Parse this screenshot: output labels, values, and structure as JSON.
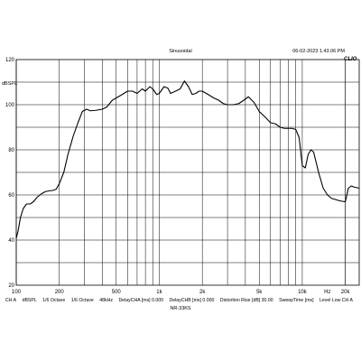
{
  "header": {
    "title": "Sinusoidal",
    "timestamp": "06-02-2023 1.43.06 PM",
    "brand": "CLIO"
  },
  "footer": {
    "items": [
      "CH A",
      "dBSPL",
      "1/6 Octave",
      "1/6 Octave",
      "48kHz",
      "DelayCHA [ms] 0.000",
      "DelayCHB [ms] 0.000",
      "Distortion Rise [dB] 30.00",
      "SweepTime [ms]",
      "Level Low CH A"
    ],
    "filename": "NR-33KS"
  },
  "chart_data": {
    "type": "line",
    "ylabel": "dBSPL",
    "x_scale": "log",
    "xlim": [
      100,
      25000
    ],
    "ylim": [
      20,
      120
    ],
    "x_ticks": [
      {
        "value": 100,
        "label": "100"
      },
      {
        "value": 200,
        "label": "200"
      },
      {
        "value": 500,
        "label": "500"
      },
      {
        "value": 1000,
        "label": "1k"
      },
      {
        "value": 2000,
        "label": "2k"
      },
      {
        "value": 5000,
        "label": "5k"
      },
      {
        "value": 10000,
        "label": "10k"
      },
      {
        "value": 15000,
        "label": "Hz"
      },
      {
        "value": 20000,
        "label": "20k"
      }
    ],
    "y_ticks": [
      20,
      40,
      60,
      80,
      100,
      120
    ],
    "grid": true,
    "series": [
      {
        "color": "#000000",
        "x": [
          100,
          103,
          107,
          112,
          118,
          125,
          132,
          140,
          150,
          160,
          170,
          180,
          190,
          200,
          215,
          230,
          250,
          270,
          290,
          310,
          330,
          360,
          400,
          430,
          470,
          500,
          550,
          600,
          650,
          700,
          760,
          800,
          860,
          900,
          960,
          1000,
          1080,
          1150,
          1200,
          1300,
          1400,
          1500,
          1600,
          1700,
          1800,
          1900,
          2000,
          2200,
          2400,
          2600,
          2800,
          3000,
          3300,
          3600,
          3900,
          4200,
          4600,
          5000,
          5500,
          6000,
          6500,
          7000,
          7500,
          8000,
          8500,
          9000,
          9500,
          10000,
          10500,
          11000,
          11500,
          12000,
          13000,
          14000,
          15000,
          16000,
          17000,
          18000,
          19000,
          20000,
          21000,
          22000,
          23000,
          25000
        ],
        "y": [
          40.8,
          44,
          50,
          54,
          56,
          56,
          57,
          59,
          60.5,
          61.5,
          61.8,
          62,
          62.5,
          65,
          70,
          78,
          86,
          92,
          97,
          98,
          97.3,
          97.5,
          98,
          99,
          102,
          103,
          104.5,
          106,
          106,
          105,
          107,
          106,
          108,
          107,
          104.5,
          105,
          108,
          107.3,
          105,
          106,
          107,
          110.5,
          108,
          104.5,
          105,
          106,
          106,
          104.5,
          103,
          102,
          100.5,
          100,
          100,
          100.5,
          102,
          103.5,
          101,
          97,
          94.5,
          92,
          91.5,
          90,
          89.5,
          89.5,
          89.5,
          89,
          85.5,
          73,
          72,
          78,
          80,
          79,
          70,
          63,
          60,
          58.5,
          58,
          57.5,
          57.2,
          57,
          63,
          64,
          63.5,
          63
        ]
      }
    ]
  }
}
